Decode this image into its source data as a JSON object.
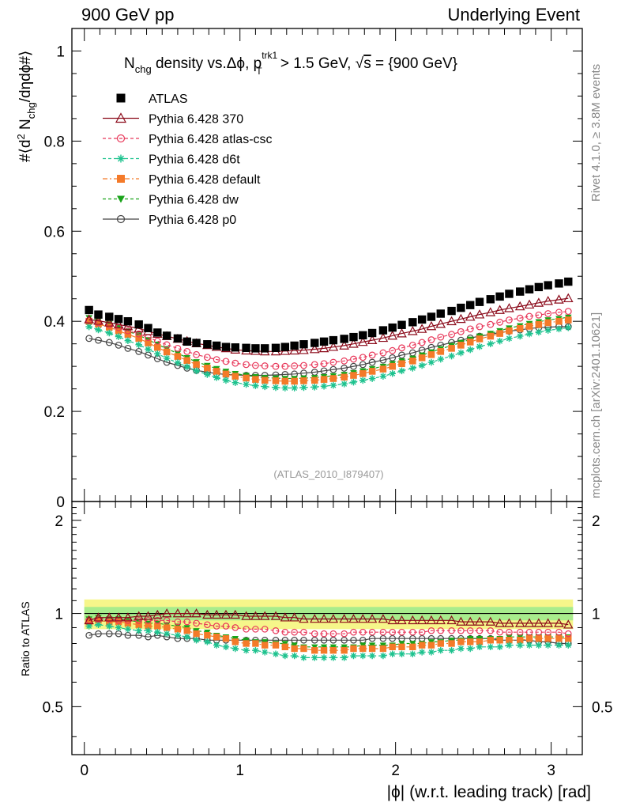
{
  "header": {
    "left": "900 GeV pp",
    "right": "Underlying Event"
  },
  "side_labels": {
    "top": "Rivet 4.1.0, ≥ 3.8M events",
    "bottom": "mcplots.cern.ch [arXiv:2401.10621]"
  },
  "plot_title": {
    "main": "N",
    "main_sub": "chg",
    "mid": " density vs.Δϕ, p",
    "pt_sup": "trk1",
    "pt_sub": "T",
    "rest": " > 1.5 GeV, ",
    "sqrt": "√",
    "s": "s",
    "energy": " = {900 GeV}"
  },
  "watermark": "(ATLAS_2010_I879407)",
  "legend": [
    {
      "label": "ATLAS"
    },
    {
      "label": "Pythia 6.428 370"
    },
    {
      "label": "Pythia 6.428 atlas-csc"
    },
    {
      "label": "Pythia 6.428 d6t"
    },
    {
      "label": "Pythia 6.428 default"
    },
    {
      "label": "Pythia 6.428 dw"
    },
    {
      "label": "Pythia 6.428 p0"
    }
  ],
  "colors": {
    "atlas": "#000000",
    "p370": "#8b0a1a",
    "atlascsc": "#e8385a",
    "d6t": "#1dc28e",
    "default": "#f47a29",
    "dw": "#1aa31a",
    "p0": "#444444",
    "band_outer": "#f6f68a",
    "band_inner": "#a8ec8c"
  },
  "chart_data": [
    {
      "type": "scatter",
      "panel": "main",
      "title": "Nchg density vs.Δϕ, pT(trk1) > 1.5 GeV, √s = {900 GeV}",
      "ylabel": "#⟨d² N_chg/dηdϕ#⟩",
      "xlim": [
        -0.08,
        3.2
      ],
      "ylim": [
        0,
        1.05
      ],
      "x_ticks": [
        0,
        1,
        2,
        3
      ],
      "y_ticks": [
        0.2,
        0.4,
        0.6,
        0.8,
        1
      ],
      "y_tick_labels": [
        "0",
        "0.2",
        "0.4",
        "0.6",
        "0.8",
        "1"
      ],
      "x": [
        0.03,
        0.09,
        0.16,
        0.22,
        0.28,
        0.35,
        0.41,
        0.47,
        0.53,
        0.6,
        0.66,
        0.72,
        0.79,
        0.85,
        0.91,
        0.97,
        1.04,
        1.1,
        1.16,
        1.23,
        1.29,
        1.35,
        1.41,
        1.48,
        1.54,
        1.6,
        1.67,
        1.73,
        1.79,
        1.85,
        1.92,
        1.98,
        2.04,
        2.11,
        2.17,
        2.23,
        2.29,
        2.36,
        2.42,
        2.48,
        2.54,
        2.61,
        2.67,
        2.73,
        2.8,
        2.86,
        2.92,
        2.98,
        3.05,
        3.11
      ],
      "series": [
        {
          "name": "ATLAS",
          "values": [
            0.425,
            0.415,
            0.41,
            0.405,
            0.4,
            0.393,
            0.385,
            0.375,
            0.368,
            0.362,
            0.355,
            0.352,
            0.349,
            0.346,
            0.343,
            0.342,
            0.341,
            0.34,
            0.34,
            0.341,
            0.343,
            0.346,
            0.349,
            0.352,
            0.355,
            0.358,
            0.361,
            0.365,
            0.369,
            0.374,
            0.38,
            0.386,
            0.392,
            0.398,
            0.404,
            0.41,
            0.417,
            0.423,
            0.43,
            0.436,
            0.443,
            0.449,
            0.455,
            0.461,
            0.466,
            0.471,
            0.476,
            0.48,
            0.484,
            0.488
          ]
        },
        {
          "name": "Pythia 6.428 370",
          "values": [
            0.404,
            0.401,
            0.397,
            0.393,
            0.389,
            0.384,
            0.378,
            0.372,
            0.367,
            0.361,
            0.356,
            0.351,
            0.347,
            0.343,
            0.34,
            0.337,
            0.335,
            0.334,
            0.333,
            0.333,
            0.334,
            0.335,
            0.336,
            0.338,
            0.34,
            0.343,
            0.346,
            0.35,
            0.354,
            0.358,
            0.363,
            0.368,
            0.373,
            0.378,
            0.383,
            0.389,
            0.394,
            0.4,
            0.405,
            0.41,
            0.415,
            0.42,
            0.425,
            0.429,
            0.433,
            0.437,
            0.441,
            0.445,
            0.448,
            0.451
          ]
        },
        {
          "name": "Pythia 6.428 atlas-csc",
          "values": [
            0.402,
            0.397,
            0.392,
            0.386,
            0.379,
            0.372,
            0.364,
            0.356,
            0.348,
            0.34,
            0.333,
            0.326,
            0.32,
            0.315,
            0.311,
            0.307,
            0.304,
            0.302,
            0.301,
            0.3,
            0.3,
            0.301,
            0.302,
            0.304,
            0.306,
            0.309,
            0.312,
            0.316,
            0.32,
            0.325,
            0.33,
            0.335,
            0.341,
            0.347,
            0.353,
            0.359,
            0.365,
            0.371,
            0.377,
            0.383,
            0.388,
            0.393,
            0.398,
            0.403,
            0.407,
            0.411,
            0.414,
            0.417,
            0.42,
            0.422
          ]
        },
        {
          "name": "Pythia 6.428 d6t",
          "values": [
            0.388,
            0.381,
            0.374,
            0.366,
            0.357,
            0.348,
            0.338,
            0.328,
            0.318,
            0.308,
            0.299,
            0.29,
            0.282,
            0.275,
            0.269,
            0.264,
            0.26,
            0.257,
            0.255,
            0.253,
            0.252,
            0.252,
            0.253,
            0.254,
            0.256,
            0.258,
            0.261,
            0.265,
            0.269,
            0.273,
            0.278,
            0.284,
            0.29,
            0.296,
            0.302,
            0.309,
            0.316,
            0.323,
            0.33,
            0.337,
            0.344,
            0.35,
            0.356,
            0.362,
            0.367,
            0.372,
            0.376,
            0.38,
            0.383,
            0.386
          ]
        },
        {
          "name": "Pythia 6.428 default",
          "values": [
            0.4,
            0.394,
            0.387,
            0.379,
            0.371,
            0.362,
            0.352,
            0.342,
            0.332,
            0.322,
            0.313,
            0.304,
            0.296,
            0.289,
            0.283,
            0.278,
            0.274,
            0.271,
            0.269,
            0.268,
            0.267,
            0.267,
            0.268,
            0.269,
            0.271,
            0.273,
            0.276,
            0.28,
            0.284,
            0.289,
            0.294,
            0.3,
            0.306,
            0.312,
            0.319,
            0.326,
            0.333,
            0.34,
            0.347,
            0.354,
            0.361,
            0.367,
            0.373,
            0.379,
            0.384,
            0.389,
            0.393,
            0.397,
            0.4,
            0.403
          ]
        },
        {
          "name": "Pythia 6.428 dw",
          "values": [
            0.408,
            0.402,
            0.395,
            0.387,
            0.378,
            0.369,
            0.359,
            0.349,
            0.339,
            0.329,
            0.319,
            0.31,
            0.302,
            0.295,
            0.289,
            0.284,
            0.28,
            0.277,
            0.275,
            0.274,
            0.273,
            0.273,
            0.274,
            0.275,
            0.277,
            0.279,
            0.282,
            0.286,
            0.29,
            0.295,
            0.3,
            0.306,
            0.312,
            0.318,
            0.325,
            0.332,
            0.339,
            0.346,
            0.353,
            0.36,
            0.367,
            0.373,
            0.379,
            0.385,
            0.39,
            0.395,
            0.399,
            0.403,
            0.406,
            0.409
          ]
        },
        {
          "name": "Pythia 6.428 p0",
          "values": [
            0.362,
            0.358,
            0.353,
            0.347,
            0.34,
            0.333,
            0.325,
            0.317,
            0.309,
            0.302,
            0.296,
            0.291,
            0.287,
            0.284,
            0.282,
            0.281,
            0.28,
            0.28,
            0.28,
            0.281,
            0.282,
            0.283,
            0.285,
            0.287,
            0.29,
            0.293,
            0.296,
            0.3,
            0.304,
            0.309,
            0.314,
            0.319,
            0.325,
            0.33,
            0.336,
            0.342,
            0.347,
            0.353,
            0.358,
            0.363,
            0.367,
            0.371,
            0.375,
            0.378,
            0.381,
            0.384,
            0.386,
            0.387,
            0.388,
            0.388
          ]
        }
      ]
    },
    {
      "type": "scatter",
      "panel": "ratio",
      "ylabel": "Ratio to ATLAS",
      "xlabel": "|ϕ| (w.r.t. leading track) [rad]",
      "xlim": [
        -0.08,
        3.2
      ],
      "ylim": [
        0.35,
        2.3
      ],
      "x_ticks": [
        0,
        1,
        2,
        3
      ],
      "y_ticks": [
        0.5,
        1,
        2
      ],
      "y_tick_labels": [
        "0.5",
        "1",
        "2"
      ],
      "band_outer": [
        0.89,
        1.11
      ],
      "band_inner": [
        0.95,
        1.05
      ],
      "x": [
        0.03,
        0.09,
        0.16,
        0.22,
        0.28,
        0.35,
        0.41,
        0.47,
        0.53,
        0.6,
        0.66,
        0.72,
        0.79,
        0.85,
        0.91,
        0.97,
        1.04,
        1.1,
        1.16,
        1.23,
        1.29,
        1.35,
        1.41,
        1.48,
        1.54,
        1.6,
        1.67,
        1.73,
        1.79,
        1.85,
        1.92,
        1.98,
        2.04,
        2.11,
        2.17,
        2.23,
        2.29,
        2.36,
        2.42,
        2.48,
        2.54,
        2.61,
        2.67,
        2.73,
        2.8,
        2.86,
        2.92,
        2.98,
        3.05,
        3.11
      ],
      "series": [
        {
          "name": "Pythia 6.428 370",
          "values": [
            0.95,
            0.97,
            0.97,
            0.97,
            0.97,
            0.98,
            0.98,
            0.99,
            1.0,
            1.0,
            1.0,
            1.0,
            0.99,
            0.99,
            0.99,
            0.99,
            0.98,
            0.98,
            0.98,
            0.98,
            0.97,
            0.97,
            0.96,
            0.96,
            0.96,
            0.96,
            0.96,
            0.96,
            0.96,
            0.96,
            0.96,
            0.95,
            0.95,
            0.95,
            0.95,
            0.95,
            0.95,
            0.95,
            0.94,
            0.94,
            0.94,
            0.94,
            0.93,
            0.93,
            0.93,
            0.93,
            0.93,
            0.93,
            0.93,
            0.92
          ]
        },
        {
          "name": "Pythia 6.428 atlas-csc",
          "values": [
            0.95,
            0.96,
            0.96,
            0.95,
            0.95,
            0.95,
            0.95,
            0.95,
            0.95,
            0.94,
            0.94,
            0.93,
            0.92,
            0.91,
            0.91,
            0.9,
            0.89,
            0.89,
            0.89,
            0.88,
            0.87,
            0.87,
            0.87,
            0.86,
            0.86,
            0.86,
            0.86,
            0.87,
            0.87,
            0.87,
            0.87,
            0.87,
            0.87,
            0.87,
            0.87,
            0.88,
            0.88,
            0.88,
            0.88,
            0.88,
            0.88,
            0.88,
            0.87,
            0.87,
            0.87,
            0.87,
            0.87,
            0.87,
            0.87,
            0.86
          ]
        },
        {
          "name": "Pythia 6.428 d6t",
          "values": [
            0.91,
            0.92,
            0.91,
            0.9,
            0.89,
            0.88,
            0.88,
            0.87,
            0.86,
            0.85,
            0.84,
            0.82,
            0.81,
            0.79,
            0.78,
            0.77,
            0.76,
            0.76,
            0.75,
            0.74,
            0.73,
            0.73,
            0.72,
            0.72,
            0.72,
            0.72,
            0.72,
            0.73,
            0.73,
            0.73,
            0.73,
            0.74,
            0.74,
            0.74,
            0.75,
            0.75,
            0.76,
            0.76,
            0.77,
            0.77,
            0.78,
            0.78,
            0.78,
            0.79,
            0.79,
            0.79,
            0.79,
            0.79,
            0.79,
            0.79
          ]
        },
        {
          "name": "Pythia 6.428 default",
          "values": [
            0.94,
            0.95,
            0.94,
            0.94,
            0.93,
            0.92,
            0.91,
            0.91,
            0.9,
            0.89,
            0.88,
            0.86,
            0.85,
            0.84,
            0.83,
            0.81,
            0.8,
            0.8,
            0.79,
            0.79,
            0.78,
            0.77,
            0.77,
            0.76,
            0.76,
            0.76,
            0.76,
            0.77,
            0.77,
            0.77,
            0.77,
            0.78,
            0.78,
            0.78,
            0.79,
            0.79,
            0.8,
            0.8,
            0.81,
            0.81,
            0.81,
            0.82,
            0.82,
            0.82,
            0.82,
            0.83,
            0.83,
            0.83,
            0.83,
            0.83
          ]
        },
        {
          "name": "Pythia 6.428 dw",
          "values": [
            0.96,
            0.97,
            0.96,
            0.96,
            0.95,
            0.94,
            0.93,
            0.93,
            0.92,
            0.91,
            0.9,
            0.88,
            0.87,
            0.85,
            0.84,
            0.83,
            0.82,
            0.81,
            0.81,
            0.8,
            0.8,
            0.79,
            0.78,
            0.78,
            0.78,
            0.78,
            0.78,
            0.78,
            0.79,
            0.79,
            0.79,
            0.79,
            0.8,
            0.8,
            0.8,
            0.81,
            0.81,
            0.82,
            0.82,
            0.83,
            0.83,
            0.83,
            0.83,
            0.84,
            0.84,
            0.84,
            0.84,
            0.84,
            0.84,
            0.84
          ]
        },
        {
          "name": "Pythia 6.428 p0",
          "values": [
            0.85,
            0.86,
            0.86,
            0.86,
            0.85,
            0.85,
            0.84,
            0.85,
            0.84,
            0.83,
            0.83,
            0.83,
            0.82,
            0.82,
            0.82,
            0.82,
            0.82,
            0.82,
            0.82,
            0.82,
            0.82,
            0.82,
            0.82,
            0.82,
            0.82,
            0.82,
            0.82,
            0.82,
            0.82,
            0.83,
            0.83,
            0.83,
            0.83,
            0.83,
            0.83,
            0.83,
            0.83,
            0.83,
            0.83,
            0.83,
            0.83,
            0.83,
            0.82,
            0.82,
            0.82,
            0.82,
            0.81,
            0.81,
            0.8,
            0.8
          ]
        }
      ]
    }
  ]
}
